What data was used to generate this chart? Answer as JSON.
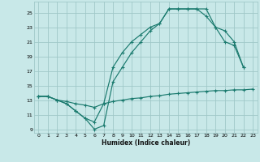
{
  "xlabel": "Humidex (Indice chaleur)",
  "background_color": "#c8e8e8",
  "grid_color": "#a0c8c8",
  "line_color": "#1a7a6e",
  "xlim": [
    -0.5,
    23.5
  ],
  "ylim": [
    8.5,
    26.5
  ],
  "xticks": [
    0,
    1,
    2,
    3,
    4,
    5,
    6,
    7,
    8,
    9,
    10,
    11,
    12,
    13,
    14,
    15,
    16,
    17,
    18,
    19,
    20,
    21,
    22,
    23
  ],
  "yticks": [
    9,
    11,
    13,
    15,
    17,
    19,
    21,
    23,
    25
  ],
  "curve1_x": [
    0,
    1,
    2,
    3,
    4,
    5,
    6,
    7,
    8,
    9,
    10,
    11,
    12,
    13,
    14,
    15,
    16,
    17,
    18,
    19,
    20,
    21,
    22,
    23
  ],
  "curve1_y": [
    13.5,
    13.5,
    13.0,
    12.8,
    12.5,
    12.3,
    12.0,
    12.5,
    12.8,
    13.0,
    13.2,
    13.3,
    13.5,
    13.6,
    13.8,
    13.9,
    14.0,
    14.1,
    14.2,
    14.3,
    14.3,
    14.4,
    14.4,
    14.5
  ],
  "curve2_x": [
    0,
    1,
    2,
    3,
    4,
    5,
    6,
    7,
    8,
    9,
    10,
    11,
    12,
    13,
    14,
    15,
    16,
    17,
    18,
    19,
    20,
    21,
    22
  ],
  "curve2_y": [
    13.5,
    13.5,
    13.0,
    12.5,
    11.5,
    10.5,
    9.0,
    9.5,
    15.5,
    17.5,
    19.5,
    21.0,
    22.5,
    23.5,
    25.5,
    25.5,
    25.5,
    25.5,
    25.5,
    23.0,
    21.0,
    20.5,
    17.5
  ],
  "curve3_x": [
    0,
    1,
    2,
    3,
    4,
    5,
    6,
    7,
    8,
    9,
    10,
    11,
    12,
    13,
    14,
    15,
    16,
    17,
    18,
    19,
    20,
    21,
    22
  ],
  "curve3_y": [
    13.5,
    13.5,
    13.0,
    12.5,
    11.5,
    10.5,
    10.0,
    12.5,
    17.5,
    19.5,
    21.0,
    22.0,
    23.0,
    23.5,
    25.5,
    25.5,
    25.5,
    25.5,
    24.5,
    23.0,
    22.5,
    21.0,
    17.5
  ]
}
